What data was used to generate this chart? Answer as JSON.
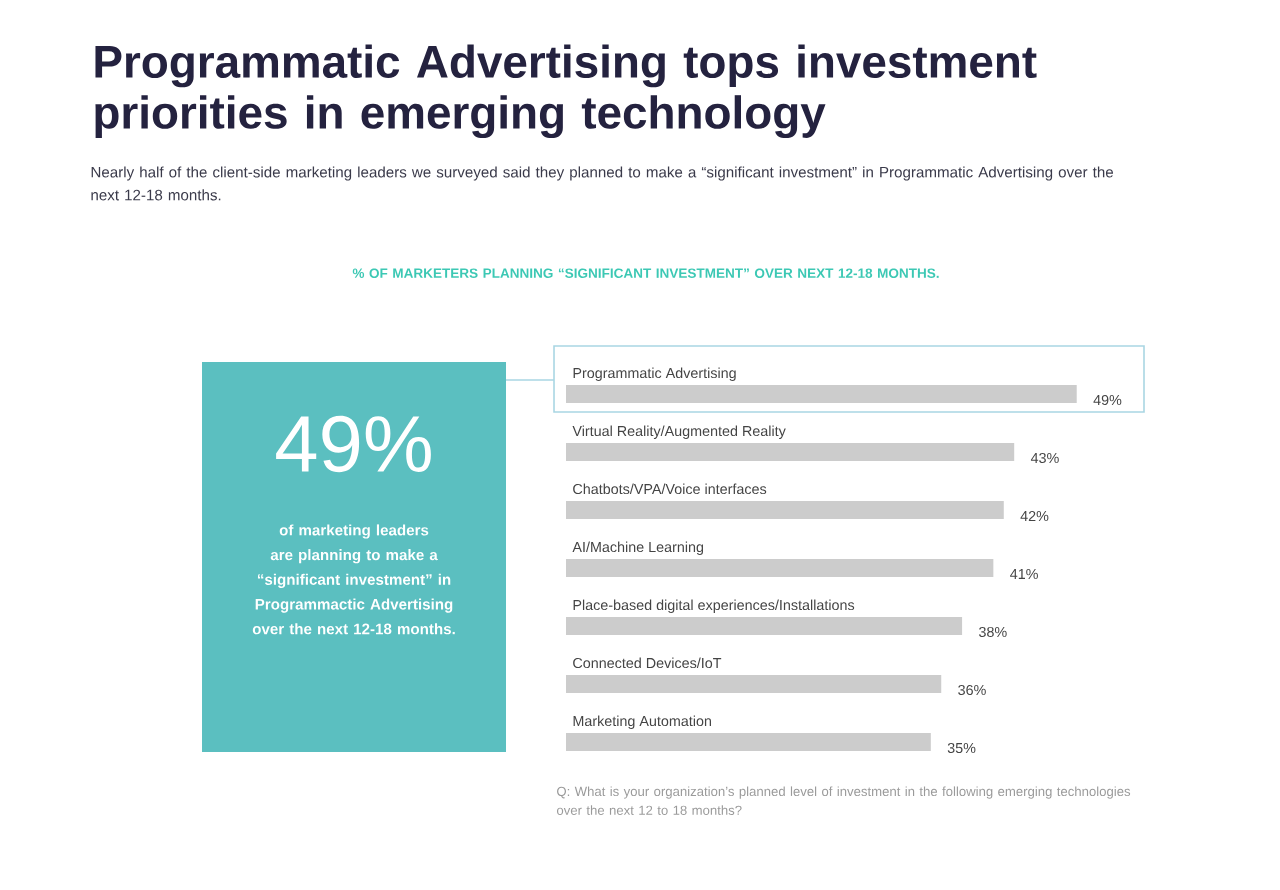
{
  "chart_data": [
    {
      "type": "bar",
      "orientation": "horizontal",
      "title": "Programmatic Advertising tops investment priorities in emerging technology",
      "subtitle": "Nearly half of the client-side marketing leaders we surveyed said they planned to make a “significant investment” in Programmatic Advertising over the next 12-18 months.",
      "color": "#cccccc",
      "categories": [
        "Programmatic Advertising",
        "Virtual Reality/Augmented Reality",
        "Chatbots/VPA/Voice interfaces",
        "AI/Machine Learning",
        "Place-based digital experiences/Installations",
        "Connected Devices/IoT",
        "Marketing Automation"
      ],
      "values": [
        49,
        43,
        42,
        41,
        38,
        36,
        35
      ],
      "value_labels": [
        "49%",
        "43%",
        "42%",
        "41%",
        "38%",
        "36%",
        "35%"
      ],
      "annotations": [
        "% OF MARKETERS PLANNING “SIGNIFICANT INVESTMENT” OVER NEXT 12-18 MONTHS.",
        "Q: What is your organization’s planned level of investment in the following emerging technologies over the next 12 to 18 months?"
      ]
    },
    {
      "type": "other",
      "title": "49%",
      "subtitle": "of marketing leaders are planning to make a “significant investment” in Programmactic Advertising over the next 12-18 months.",
      "color": "#5bbfc0"
    }
  ]
}
